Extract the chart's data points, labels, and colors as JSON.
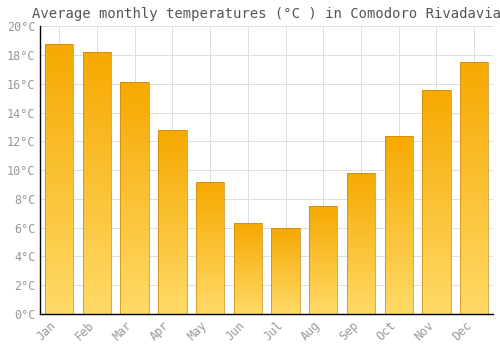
{
  "title": "Average monthly temperatures (°C ) in Comodoro Rivadavia",
  "months": [
    "Jan",
    "Feb",
    "Mar",
    "Apr",
    "May",
    "Jun",
    "Jul",
    "Aug",
    "Sep",
    "Oct",
    "Nov",
    "Dec"
  ],
  "temperatures": [
    18.8,
    18.2,
    16.1,
    12.8,
    9.2,
    6.3,
    6.0,
    7.5,
    9.8,
    12.4,
    15.6,
    17.5
  ],
  "bar_color_top": "#F5A800",
  "bar_color_bottom": "#FFD966",
  "bar_edge_color": "#C8860A",
  "background_color": "#FFFFFF",
  "grid_color": "#DDDDDD",
  "text_color": "#999999",
  "title_color": "#555555",
  "ylim": [
    0,
    20
  ],
  "ytick_step": 2,
  "title_fontsize": 10,
  "axis_fontsize": 8.5
}
